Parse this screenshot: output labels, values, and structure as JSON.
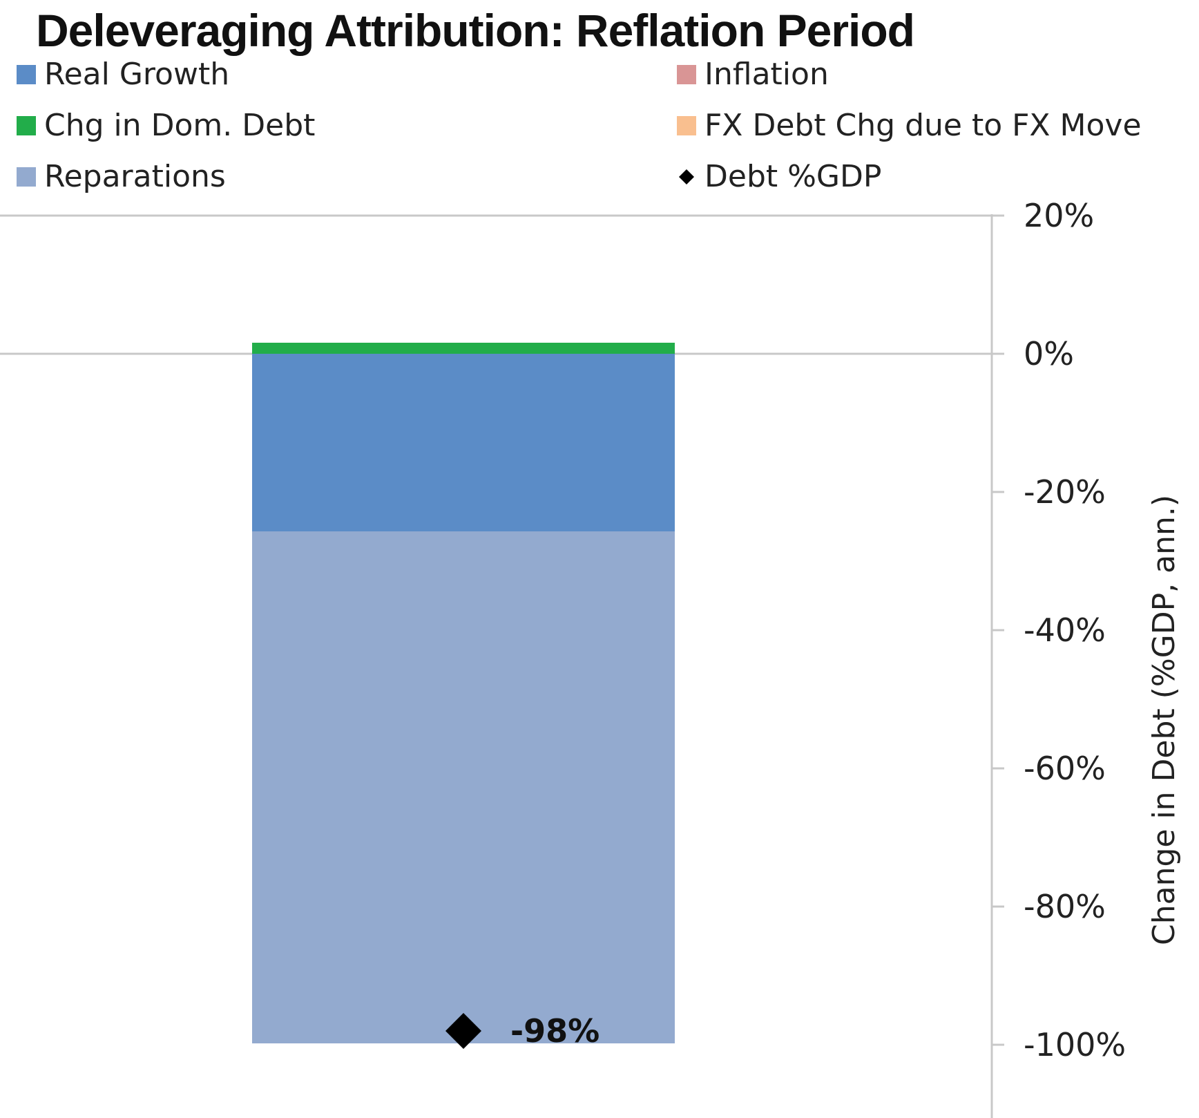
{
  "chart_data": {
    "type": "bar",
    "stacked": true,
    "title": "Deleveraging Attribution: Reflation Period",
    "categories": [
      ""
    ],
    "ylabel": "Change in Debt (%GDP, ann.)",
    "ylim": [
      -100,
      20
    ],
    "yticks": [
      "20%",
      "0%",
      "-20%",
      "-40%",
      "-60%",
      "-80%",
      "-100%"
    ],
    "ytick_values": [
      20,
      0,
      -20,
      -40,
      -60,
      -80,
      -100
    ],
    "y_axis_side": "right",
    "legend_position": "top",
    "series": [
      {
        "name": "Real Growth",
        "color": "#5b8cc7",
        "values": [
          -25.7
        ]
      },
      {
        "name": "Inflation",
        "color": "#d99595",
        "values": [
          0
        ]
      },
      {
        "name": "Chg in Dom. Debt",
        "color": "#22ad4a",
        "values": [
          1.6
        ]
      },
      {
        "name": "FX Debt Chg due to FX Move",
        "color": "#f9bf8f",
        "values": [
          0
        ]
      },
      {
        "name": "Reparations",
        "color": "#93aacf",
        "values": [
          -74.1
        ]
      }
    ],
    "markers": [
      {
        "name": "Debt %GDP",
        "color": "#000000",
        "symbol": "diamond",
        "values": [
          -98
        ],
        "label": "-98%"
      }
    ]
  }
}
